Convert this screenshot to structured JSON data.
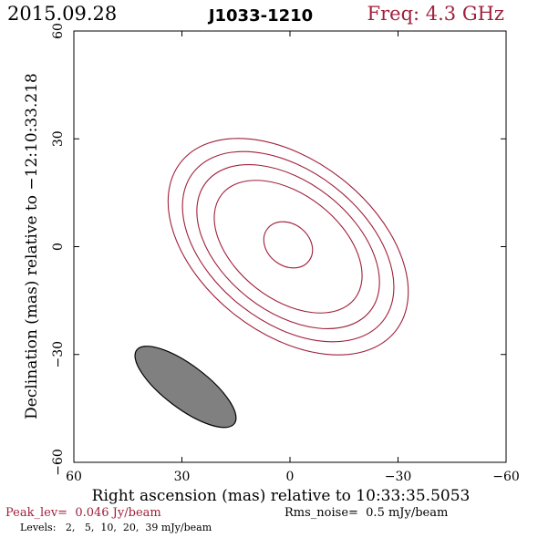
{
  "header": {
    "date": "2015.09.28",
    "source": "J1033-1210",
    "freq_label": "Freq: 4.3 GHz"
  },
  "colors": {
    "contour": "#a0203c",
    "freq_text": "#a0203c",
    "beam_fill": "#808080",
    "axes": "#000000"
  },
  "chart_data": {
    "type": "contour",
    "xlabel": "Right ascension (mas) relative to 10:33:35.5053",
    "ylabel": "Declination (mas) relative to −12:10:33.218",
    "xlim": [
      60,
      -60
    ],
    "ylim": [
      -60,
      60
    ],
    "x_ticks": [
      {
        "value": 60,
        "label": "60"
      },
      {
        "value": 30,
        "label": "30"
      },
      {
        "value": 0,
        "label": "0"
      },
      {
        "value": -30,
        "label": "−30"
      },
      {
        "value": -60,
        "label": "−60"
      }
    ],
    "y_ticks": [
      {
        "value": -60,
        "label": "−60"
      },
      {
        "value": -30,
        "label": "−30"
      },
      {
        "value": 0,
        "label": "0"
      },
      {
        "value": 30,
        "label": "30"
      },
      {
        "value": 60,
        "label": "60"
      }
    ],
    "contours": [
      {
        "level_mJy": 2,
        "center": [
          0.5,
          0
        ],
        "semi_major": 38,
        "semi_minor": 24,
        "pa_deg": 52
      },
      {
        "level_mJy": 5,
        "center": [
          0.5,
          0
        ],
        "semi_major": 33.5,
        "semi_minor": 21,
        "pa_deg": 52
      },
      {
        "level_mJy": 10,
        "center": [
          0.5,
          0
        ],
        "semi_major": 29,
        "semi_minor": 18,
        "pa_deg": 52
      },
      {
        "level_mJy": 20,
        "center": [
          0.5,
          0
        ],
        "semi_major": 23.5,
        "semi_minor": 14.5,
        "pa_deg": 52
      },
      {
        "level_mJy": 39,
        "center": [
          0.5,
          0.5
        ],
        "semi_major": 7.3,
        "semi_minor": 5.8,
        "pa_deg": 52
      }
    ],
    "beam": {
      "center": [
        29,
        -39
      ],
      "major_fwhm": 34,
      "minor_fwhm": 12,
      "pa_deg": 53
    }
  },
  "footer": {
    "peak": "Peak_lev=  0.046 Jy/beam",
    "rms": "Rms_noise=  0.5 mJy/beam",
    "levels": "Levels:   2,   5,  10,  20,  39 mJy/beam"
  }
}
